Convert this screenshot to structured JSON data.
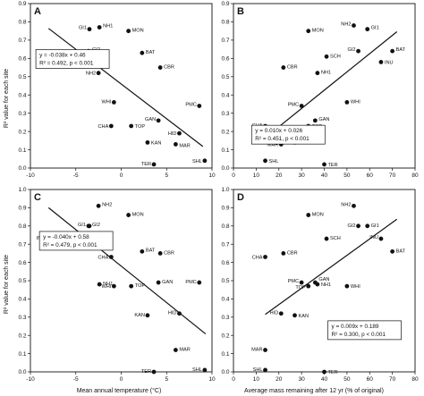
{
  "figure": {
    "shared_ylabel": "R² value for each site",
    "xlabel_left": "Mean annual temperature (°C)",
    "xlabel_right": "Average mass remaining after 12 yr (% of original)"
  },
  "chart_data": [
    {
      "panel": "A",
      "type": "scatter",
      "xlim": [
        -10,
        10
      ],
      "ylim": [
        0,
        0.9
      ],
      "xticks": [
        "-10",
        "-5",
        "0",
        "5",
        "10"
      ],
      "yticks": [
        "0.0",
        "0.1",
        "0.2",
        "0.3",
        "0.4",
        "0.5",
        "0.6",
        "0.7",
        "0.8",
        "0.9"
      ],
      "points": [
        {
          "label": "GI1",
          "x": -3.5,
          "y": 0.76
        },
        {
          "label": "NH1",
          "x": -2.4,
          "y": 0.77
        },
        {
          "label": "MON",
          "x": 0.8,
          "y": 0.75
        },
        {
          "label": "GI2",
          "x": -3.6,
          "y": 0.64
        },
        {
          "label": "BAT",
          "x": 2.3,
          "y": 0.63
        },
        {
          "label": "SCH",
          "x": -4.1,
          "y": 0.61
        },
        {
          "label": "INU",
          "x": -8.1,
          "y": 0.58
        },
        {
          "label": "CBR",
          "x": 4.3,
          "y": 0.55
        },
        {
          "label": "NH2",
          "x": -2.5,
          "y": 0.52
        },
        {
          "label": "WHI",
          "x": -0.8,
          "y": 0.36
        },
        {
          "label": "PMC",
          "x": 8.6,
          "y": 0.34
        },
        {
          "label": "GAN",
          "x": 4.1,
          "y": 0.26
        },
        {
          "label": "CHA",
          "x": -1.1,
          "y": 0.23
        },
        {
          "label": "TOP",
          "x": 1.1,
          "y": 0.23
        },
        {
          "label": "HID",
          "x": 6.4,
          "y": 0.19
        },
        {
          "label": "KAN",
          "x": 2.9,
          "y": 0.14
        },
        {
          "label": "MAR",
          "x": 6.0,
          "y": 0.13
        },
        {
          "label": "SHL",
          "x": 9.2,
          "y": 0.04
        },
        {
          "label": "TER",
          "x": 3.6,
          "y": 0.02
        }
      ],
      "trend": {
        "slope": -0.038,
        "intercept": 0.46,
        "xrange": [
          -8,
          9
        ]
      },
      "equation": "y = -0.038x + 0.46",
      "stats": "R² = 0.492, p < 0.001"
    },
    {
      "panel": "B",
      "type": "scatter",
      "xlim": [
        0,
        80
      ],
      "ylim": [
        0,
        0.9
      ],
      "xticks": [
        "0",
        "10",
        "20",
        "30",
        "40",
        "50",
        "60",
        "70",
        "80"
      ],
      "yticks": [
        "0.0",
        "0.1",
        "0.2",
        "0.3",
        "0.4",
        "0.5",
        "0.6",
        "0.7",
        "0.8",
        "0.9"
      ],
      "points": [
        {
          "label": "NH2",
          "x": 53,
          "y": 0.78
        },
        {
          "label": "GI1",
          "x": 59,
          "y": 0.76
        },
        {
          "label": "MON",
          "x": 33,
          "y": 0.75
        },
        {
          "label": "GI2",
          "x": 55,
          "y": 0.64
        },
        {
          "label": "BAT",
          "x": 70,
          "y": 0.64
        },
        {
          "label": "SCH",
          "x": 41,
          "y": 0.61
        },
        {
          "label": "INU",
          "x": 65,
          "y": 0.58
        },
        {
          "label": "CBR",
          "x": 22,
          "y": 0.55
        },
        {
          "label": "NH1",
          "x": 37,
          "y": 0.52
        },
        {
          "label": "PMC",
          "x": 30,
          "y": 0.34
        },
        {
          "label": "WHI",
          "x": 50,
          "y": 0.36
        },
        {
          "label": "GAN",
          "x": 36,
          "y": 0.26
        },
        {
          "label": "TOP",
          "x": 33,
          "y": 0.23
        },
        {
          "label": "CHA",
          "x": 14,
          "y": 0.23
        },
        {
          "label": "HID",
          "x": 30,
          "y": 0.19
        },
        {
          "label": "MAR",
          "x": 21,
          "y": 0.13
        },
        {
          "label": "KAN",
          "x": 27,
          "y": 0.14
        },
        {
          "label": "SHL",
          "x": 14,
          "y": 0.04
        },
        {
          "label": "TER",
          "x": 40,
          "y": 0.02
        }
      ],
      "trend": {
        "slope": 0.01,
        "intercept": 0.026,
        "xrange": [
          14,
          72
        ]
      },
      "equation": "y = 0.010x + 0.026",
      "stats": "R² = 0.451, p < 0.001"
    },
    {
      "panel": "C",
      "type": "scatter",
      "xlim": [
        -10,
        10
      ],
      "ylim": [
        0,
        1.0
      ],
      "xticks": [
        "-10",
        "-5",
        "0",
        "5",
        "10"
      ],
      "yticks": [
        "0.0",
        "0.1",
        "0.2",
        "0.3",
        "0.4",
        "0.5",
        "0.6",
        "0.7",
        "0.8",
        "0.9",
        "1.0"
      ],
      "points": [
        {
          "label": "NH2",
          "x": -2.5,
          "y": 0.91
        },
        {
          "label": "MON",
          "x": 0.8,
          "y": 0.86
        },
        {
          "label": "GI1",
          "x": -3.5,
          "y": 0.8
        },
        {
          "label": "GI2",
          "x": -3.6,
          "y": 0.8
        },
        {
          "label": "SCH",
          "x": -4.1,
          "y": 0.73
        },
        {
          "label": "INU",
          "x": -8.1,
          "y": 0.73
        },
        {
          "label": "BAT",
          "x": 2.3,
          "y": 0.66
        },
        {
          "label": "CHA",
          "x": -1.1,
          "y": 0.63
        },
        {
          "label": "CBR",
          "x": 4.3,
          "y": 0.65
        },
        {
          "label": "NH1",
          "x": -2.4,
          "y": 0.48
        },
        {
          "label": "WHI",
          "x": -0.8,
          "y": 0.47
        },
        {
          "label": "TOP",
          "x": 1.1,
          "y": 0.47
        },
        {
          "label": "GAN",
          "x": 4.1,
          "y": 0.49
        },
        {
          "label": "PMC",
          "x": 8.6,
          "y": 0.49
        },
        {
          "label": "KAN",
          "x": 2.9,
          "y": 0.31
        },
        {
          "label": "HID",
          "x": 6.4,
          "y": 0.32
        },
        {
          "label": "MAR",
          "x": 6.0,
          "y": 0.12
        },
        {
          "label": "TER",
          "x": 3.6,
          "y": 0.0
        },
        {
          "label": "SHL",
          "x": 9.2,
          "y": 0.01
        }
      ],
      "trend": {
        "slope": -0.04,
        "intercept": 0.58,
        "xrange": [
          -8,
          9.3
        ]
      },
      "equation": "y = -0.040x + 0.58",
      "stats": "R² = 0.479, p < 0.001"
    },
    {
      "panel": "D",
      "type": "scatter",
      "xlim": [
        0,
        80
      ],
      "ylim": [
        0,
        1.0
      ],
      "xticks": [
        "0",
        "10",
        "20",
        "30",
        "40",
        "50",
        "60",
        "70",
        "80"
      ],
      "yticks": [
        "0.0",
        "0.1",
        "0.2",
        "0.3",
        "0.4",
        "0.5",
        "0.6",
        "0.7",
        "0.8",
        "0.9",
        "1.0"
      ],
      "points": [
        {
          "label": "NH2",
          "x": 53,
          "y": 0.91
        },
        {
          "label": "MON",
          "x": 33,
          "y": 0.86
        },
        {
          "label": "GI2",
          "x": 55,
          "y": 0.8
        },
        {
          "label": "GI1",
          "x": 59,
          "y": 0.8
        },
        {
          "label": "BAT",
          "x": 70,
          "y": 0.66
        },
        {
          "label": "INU",
          "x": 65,
          "y": 0.73
        },
        {
          "label": "SCH",
          "x": 41,
          "y": 0.73
        },
        {
          "label": "CHA",
          "x": 14,
          "y": 0.63
        },
        {
          "label": "CBR",
          "x": 22,
          "y": 0.65
        },
        {
          "label": "GAN",
          "x": 36,
          "y": 0.49
        },
        {
          "label": "PMC",
          "x": 30,
          "y": 0.49
        },
        {
          "label": "NH1",
          "x": 37,
          "y": 0.48
        },
        {
          "label": "TOP",
          "x": 33,
          "y": 0.47
        },
        {
          "label": "WHI",
          "x": 50,
          "y": 0.47
        },
        {
          "label": "HID",
          "x": 21,
          "y": 0.32
        },
        {
          "label": "KAN",
          "x": 27,
          "y": 0.31
        },
        {
          "label": "MAR",
          "x": 14,
          "y": 0.12
        },
        {
          "label": "SHL",
          "x": 14,
          "y": 0.01
        },
        {
          "label": "TER",
          "x": 40,
          "y": 0.0
        }
      ],
      "trend": {
        "slope": 0.009,
        "intercept": 0.189,
        "xrange": [
          14,
          72
        ]
      },
      "equation": "y = 0.009x + 0.189",
      "stats": "R² = 0.300, p < 0.001"
    }
  ]
}
